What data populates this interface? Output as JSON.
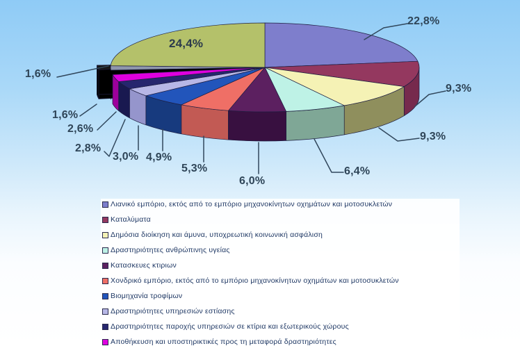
{
  "chart_data": {
    "type": "pie",
    "three_d": true,
    "title": "",
    "unit": "percent",
    "decimal_separator": ",",
    "legend_position": "bottom",
    "slices": [
      {
        "label": "Λιανικό εμπόριο, εκτός από το εμπόριο μηχανοκίνητων οχημάτων και μοτοσυκλετών",
        "value": 22.8,
        "pct_label": "22,8%",
        "color": "#7E7ECC",
        "side_color": "#56569E"
      },
      {
        "label": "Καταλύματα",
        "value": 9.3,
        "pct_label": "9,3%",
        "color": "#94385F",
        "side_color": "#762A4D"
      },
      {
        "label": "Δημόσια διοίκηση και άμυνα, υποχρεωτική κοινωνική ασφάλιση",
        "value": 9.3,
        "pct_label": "9,3%",
        "color": "#F5F2B5",
        "side_color": "#8F8F5D"
      },
      {
        "label": "Δραστηριότητες ανθρώπινης υγείας",
        "value": 6.4,
        "pct_label": "6,4%",
        "color": "#BEF2E6",
        "side_color": "#7FA796"
      },
      {
        "label": "Κατασκευες κτιριων",
        "value": 6.0,
        "pct_label": "6,0%",
        "color": "#5C2060",
        "side_color": "#381040"
      },
      {
        "label": "Χονδρικό εμπόριο, εκτός από το εμπόριο μηχανοκίνητων οχημάτων και μοτοσυκλετών",
        "value": 5.3,
        "pct_label": "5,3%",
        "color": "#EF6F66",
        "side_color": "#C25A54"
      },
      {
        "label": "Βιομηχανία τροφίμων",
        "value": 4.9,
        "pct_label": "4,9%",
        "color": "#2255BB",
        "side_color": "#173A7E"
      },
      {
        "label": "Δραστηριότητες υπηρεσιών εστίασης",
        "value": 3.0,
        "pct_label": "3,0%",
        "color": "#B7B7E6",
        "side_color": "#9595CC"
      },
      {
        "label": "Δραστηριότητες παροχής υπηρεσιών σε κτίρια και εξωτερικούς χώρους",
        "value": 2.8,
        "pct_label": "2,8%",
        "color": "#26266E",
        "side_color": "#191950"
      },
      {
        "label": "Αποθήκευση και υποστηρικτικές προς τη μεταφορά δραστηριότητες",
        "value": 2.6,
        "pct_label": "2,6%",
        "color": "#DF00DF",
        "side_color": "#9C009C"
      },
      {
        "label": "",
        "value": 1.6,
        "pct_label": "1,6%",
        "color": "#161616",
        "side_color": "#000000",
        "exploded": true
      },
      {
        "label": "",
        "value": 1.6,
        "pct_label": "1,6%",
        "color": "#8E96AC",
        "side_color": "#5F6778"
      },
      {
        "label": "",
        "value": 24.4,
        "pct_label": "24,4%",
        "color": "#B4C16A",
        "side_color": "#7E8B47"
      }
    ]
  },
  "legend": {
    "visible_count": 10
  }
}
